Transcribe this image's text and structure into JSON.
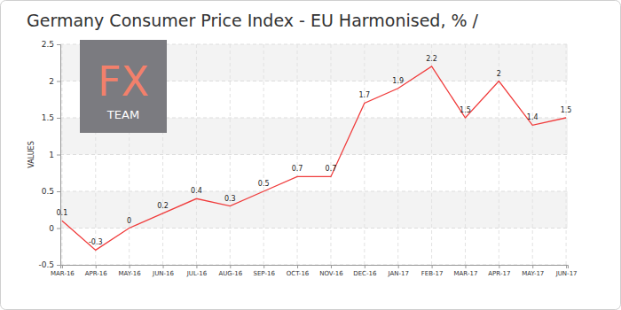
{
  "chart_data": {
    "type": "line",
    "title": "Germany Consumer Price Index - EU Harmonised, % /",
    "y_label": "VALUES",
    "annotations": [
      "FX",
      "TEAM"
    ],
    "categories": [
      "MAR-16",
      "APR-16",
      "MAY-16",
      "JUN-16",
      "JUL-16",
      "AUG-16",
      "SEP-16",
      "OCT-16",
      "NOV-16",
      "DEC-16",
      "JAN-17",
      "FEB-17",
      "MAR-17",
      "APR-17",
      "MAY-17",
      "JUN-17"
    ],
    "values": [
      0.1,
      -0.3,
      0,
      0.2,
      0.4,
      0.3,
      0.5,
      0.7,
      0.7,
      1.7,
      1.9,
      2.2,
      1.5,
      2,
      1.4,
      1.5
    ],
    "color": "#f03c3c",
    "ylim": [
      -0.5,
      2.5
    ],
    "yticks": [
      -0.5,
      0,
      0.5,
      1,
      1.5,
      2,
      2.5
    ],
    "grid": true,
    "data_labels": true
  }
}
